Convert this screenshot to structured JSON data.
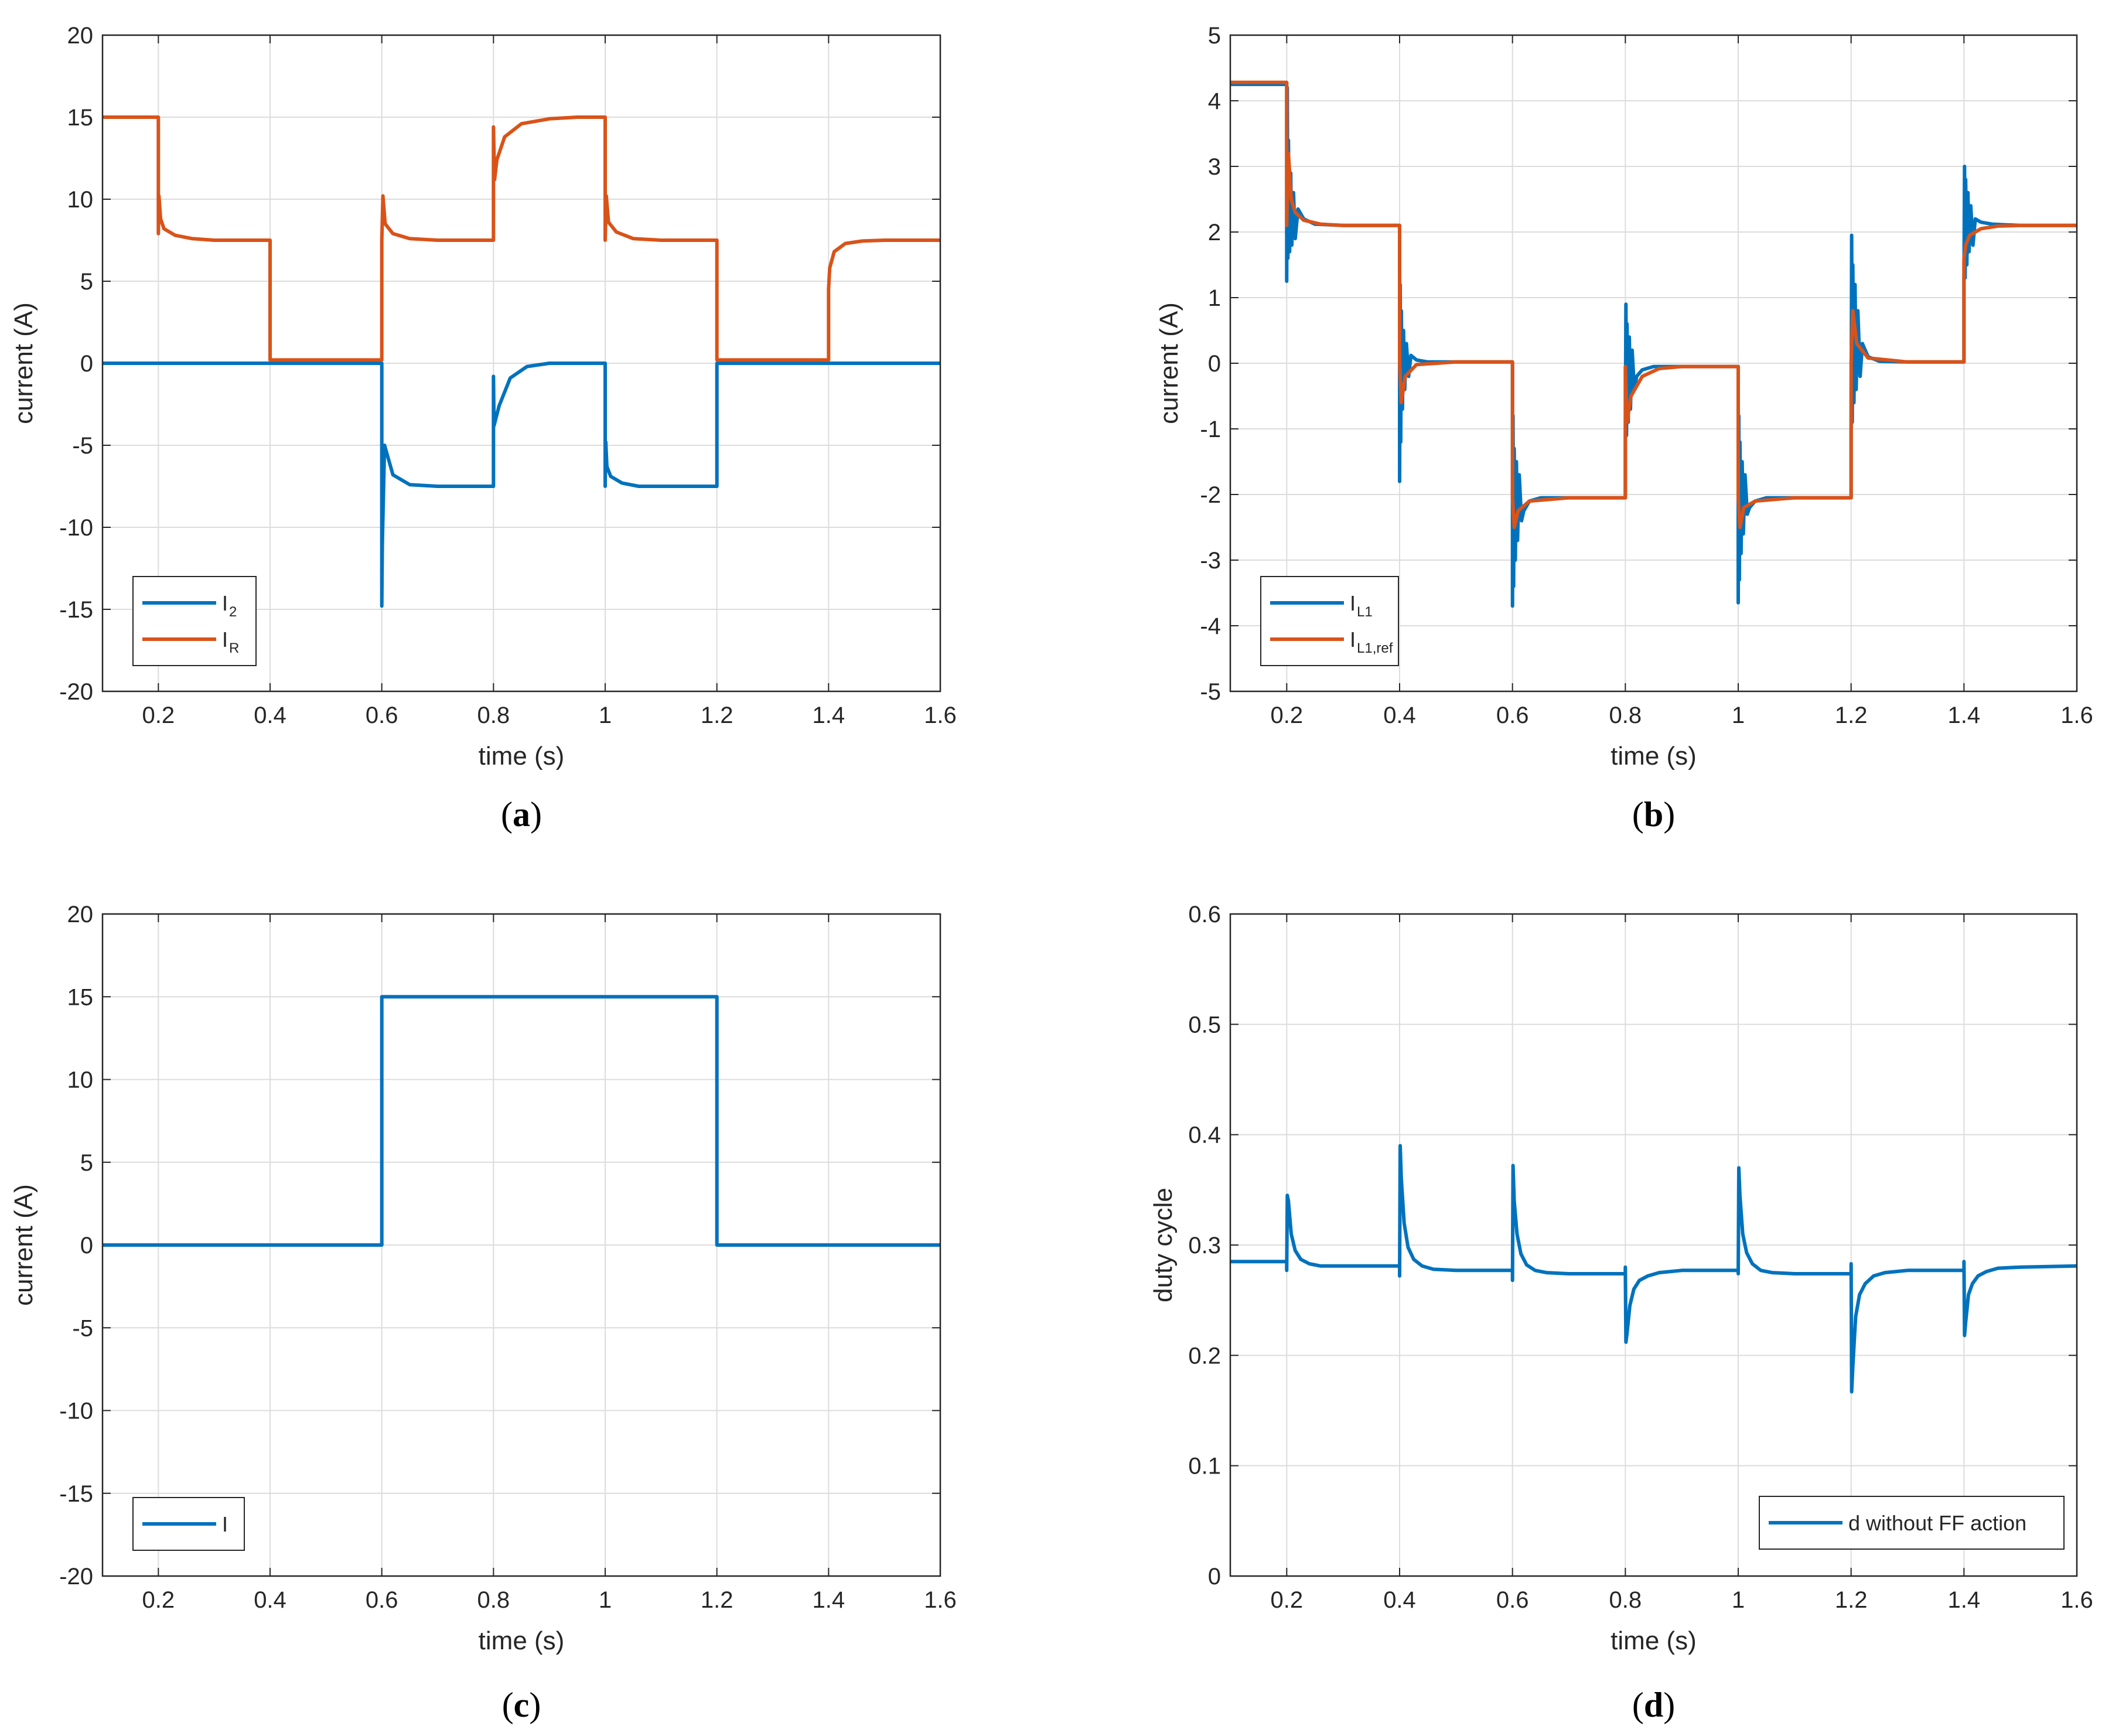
{
  "chart_data": [
    {
      "panel": "a",
      "caption": {
        "open": "(",
        "letter": "a",
        "close": ")"
      },
      "type": "line",
      "xlabel": "time (s)",
      "ylabel": "current (A)",
      "xlim": [
        0.1,
        1.6
      ],
      "ylim": [
        -20,
        20
      ],
      "xticks": [
        0.2,
        0.4,
        0.6,
        0.8,
        1,
        1.2,
        1.4,
        1.6
      ],
      "yticks": [
        -20,
        -15,
        -10,
        -5,
        0,
        5,
        10,
        15,
        20
      ],
      "grid": true,
      "legend_position": "bottom-left",
      "series": [
        {
          "name": "I",
          "subscript": "2",
          "color": "#0072BD",
          "x": [
            0.1,
            0.6,
            0.6,
            0.601,
            0.605,
            0.62,
            0.65,
            0.7,
            0.8,
            0.8,
            0.801,
            0.81,
            0.83,
            0.86,
            0.9,
            1.0,
            1.0,
            1.001,
            1.003,
            1.01,
            1.03,
            1.06,
            1.1,
            1.2,
            1.2,
            1.6
          ],
          "y": [
            0,
            0,
            -14.8,
            -11,
            -5,
            -6.8,
            -7.4,
            -7.5,
            -7.5,
            -0.8,
            -3.8,
            -2.6,
            -0.9,
            -0.2,
            0,
            0,
            -7.5,
            -4.8,
            -6.3,
            -6.9,
            -7.3,
            -7.5,
            -7.5,
            -7.5,
            0,
            0
          ]
        },
        {
          "name": "I",
          "subscript": "R",
          "color": "#D95319",
          "x": [
            0.1,
            0.2,
            0.2,
            0.201,
            0.204,
            0.21,
            0.23,
            0.26,
            0.3,
            0.4,
            0.4,
            0.6,
            0.6,
            0.602,
            0.606,
            0.62,
            0.65,
            0.7,
            0.8,
            0.8,
            0.802,
            0.806,
            0.82,
            0.85,
            0.9,
            0.95,
            1.0,
            1.0,
            1.002,
            1.006,
            1.02,
            1.05,
            1.1,
            1.2,
            1.2,
            1.4,
            1.4,
            1.402,
            1.41,
            1.43,
            1.46,
            1.5,
            1.6
          ],
          "y": [
            15,
            15,
            7.9,
            10.2,
            8.8,
            8.2,
            7.8,
            7.6,
            7.5,
            7.5,
            0.2,
            0.2,
            7.5,
            10.2,
            8.5,
            7.9,
            7.6,
            7.5,
            7.5,
            14.4,
            11.2,
            12.4,
            13.8,
            14.6,
            14.9,
            15,
            15,
            7.5,
            10.2,
            8.6,
            8.0,
            7.6,
            7.5,
            7.5,
            0.2,
            0.2,
            4.5,
            5.8,
            6.8,
            7.3,
            7.45,
            7.5,
            7.5
          ]
        }
      ]
    },
    {
      "panel": "b",
      "caption": {
        "open": "(",
        "letter": "b",
        "close": ")"
      },
      "type": "line",
      "xlabel": "time (s)",
      "ylabel": "current (A)",
      "xlim": [
        0.1,
        1.6
      ],
      "ylim": [
        -5,
        5
      ],
      "xticks": [
        0.2,
        0.4,
        0.6,
        0.8,
        1,
        1.2,
        1.4,
        1.6
      ],
      "yticks": [
        -5,
        -4,
        -3,
        -2,
        -1,
        0,
        1,
        2,
        3,
        4,
        5
      ],
      "grid": true,
      "legend_position": "bottom-left",
      "series": [
        {
          "name": "I",
          "subscript": "L1",
          "color": "#0072BD",
          "x": [
            0.1,
            0.2,
            0.2,
            0.201,
            0.202,
            0.203,
            0.205,
            0.207,
            0.209,
            0.212,
            0.215,
            0.22,
            0.23,
            0.25,
            0.3,
            0.4,
            0.4,
            0.401,
            0.402,
            0.403,
            0.405,
            0.407,
            0.409,
            0.412,
            0.416,
            0.42,
            0.43,
            0.45,
            0.5,
            0.6,
            0.6,
            0.601,
            0.602,
            0.603,
            0.605,
            0.607,
            0.609,
            0.612,
            0.616,
            0.62,
            0.63,
            0.65,
            0.7,
            0.8,
            0.8,
            0.801,
            0.802,
            0.803,
            0.805,
            0.807,
            0.809,
            0.812,
            0.816,
            0.82,
            0.83,
            0.85,
            0.9,
            1.0,
            1.0,
            1.001,
            1.002,
            1.003,
            1.005,
            1.007,
            1.009,
            1.012,
            1.016,
            1.02,
            1.03,
            1.05,
            1.1,
            1.2,
            1.2,
            1.201,
            1.202,
            1.203,
            1.205,
            1.207,
            1.209,
            1.212,
            1.216,
            1.22,
            1.23,
            1.25,
            1.3,
            1.4,
            1.4,
            1.401,
            1.402,
            1.403,
            1.405,
            1.407,
            1.409,
            1.412,
            1.416,
            1.42,
            1.43,
            1.45,
            1.5,
            1.6
          ],
          "y": [
            4.25,
            4.25,
            1.25,
            4.2,
            1.6,
            3.4,
            1.7,
            2.9,
            1.8,
            2.6,
            1.9,
            2.35,
            2.2,
            2.12,
            2.1,
            2.1,
            -1.8,
            1.2,
            -1.2,
            0.8,
            -0.7,
            0.5,
            -0.4,
            0.3,
            -0.2,
            0.12,
            0.05,
            0.02,
            0.02,
            0.02,
            -3.7,
            -0.8,
            -3.4,
            -1.3,
            -3.0,
            -1.5,
            -2.7,
            -1.7,
            -2.4,
            -2.25,
            -2.1,
            -2.05,
            -2.05,
            -2.05,
            -1.2,
            0.9,
            -1.1,
            0.6,
            -0.9,
            0.4,
            -0.7,
            0.2,
            -0.4,
            -0.2,
            -0.1,
            -0.05,
            -0.05,
            -0.05,
            -3.65,
            -0.8,
            -3.3,
            -1.2,
            -2.9,
            -1.5,
            -2.6,
            -1.7,
            -2.3,
            -2.2,
            -2.1,
            -2.05,
            -2.05,
            -2.05,
            -1.2,
            1.95,
            -0.9,
            1.5,
            -0.6,
            1.2,
            -0.4,
            0.8,
            -0.2,
            0.3,
            0.1,
            0.03,
            0.02,
            0.02,
            1.2,
            3.0,
            1.3,
            2.8,
            1.5,
            2.6,
            1.7,
            2.4,
            1.8,
            2.2,
            2.15,
            2.12,
            2.1,
            2.1
          ]
        },
        {
          "name": "I",
          "subscript": "L1,ref",
          "color": "#D95319",
          "x": [
            0.1,
            0.2,
            0.2,
            0.203,
            0.208,
            0.215,
            0.23,
            0.26,
            0.3,
            0.4,
            0.4,
            0.403,
            0.41,
            0.43,
            0.5,
            0.6,
            0.6,
            0.603,
            0.61,
            0.63,
            0.7,
            0.8,
            0.8,
            0.803,
            0.81,
            0.83,
            0.86,
            0.9,
            1.0,
            1.0,
            1.003,
            1.01,
            1.03,
            1.1,
            1.2,
            1.2,
            1.203,
            1.21,
            1.23,
            1.3,
            1.4,
            1.4,
            1.403,
            1.41,
            1.43,
            1.46,
            1.5,
            1.6
          ],
          "y": [
            4.28,
            4.28,
            2.1,
            3.2,
            2.5,
            2.3,
            2.18,
            2.12,
            2.1,
            2.1,
            0.02,
            -0.6,
            -0.2,
            -0.02,
            0.02,
            0.02,
            -2.05,
            -2.5,
            -2.25,
            -2.1,
            -2.05,
            -2.05,
            -0.05,
            -0.9,
            -0.5,
            -0.2,
            -0.08,
            -0.05,
            -0.05,
            -2.05,
            -2.5,
            -2.2,
            -2.1,
            -2.05,
            -2.05,
            0.02,
            0.8,
            0.3,
            0.08,
            0.02,
            0.02,
            1.6,
            1.8,
            1.95,
            2.05,
            2.09,
            2.1,
            2.1
          ]
        }
      ]
    },
    {
      "panel": "c",
      "caption": {
        "open": "(",
        "letter": "c",
        "close": ")"
      },
      "type": "line",
      "xlabel": "time (s)",
      "ylabel": "current (A)",
      "xlim": [
        0.1,
        1.6
      ],
      "ylim": [
        -20,
        20
      ],
      "xticks": [
        0.2,
        0.4,
        0.6,
        0.8,
        1,
        1.2,
        1.4,
        1.6
      ],
      "yticks": [
        -20,
        -15,
        -10,
        -5,
        0,
        5,
        10,
        15,
        20
      ],
      "grid": true,
      "legend_position": "bottom-left",
      "series": [
        {
          "name": "I",
          "subscript": "",
          "color": "#0072BD",
          "x": [
            0.1,
            0.6,
            0.6,
            1.2,
            1.2,
            1.6
          ],
          "y": [
            0,
            0,
            15,
            15,
            0,
            0
          ]
        }
      ]
    },
    {
      "panel": "d",
      "caption": {
        "open": "(",
        "letter": "d",
        "close": ")"
      },
      "type": "line",
      "xlabel": "time (s)",
      "ylabel": "duty cycle",
      "xlim": [
        0.1,
        1.6
      ],
      "ylim": [
        0,
        0.6
      ],
      "xticks": [
        0.2,
        0.4,
        0.6,
        0.8,
        1,
        1.2,
        1.4,
        1.6
      ],
      "yticks": [
        0,
        0.1,
        0.2,
        0.3,
        0.4,
        0.5,
        0.6
      ],
      "grid": true,
      "legend_position": "bottom-right",
      "series": [
        {
          "name": "d without FF action",
          "subscript": "",
          "color": "#0072BD",
          "x": [
            0.1,
            0.2,
            0.2,
            0.201,
            0.203,
            0.208,
            0.215,
            0.225,
            0.24,
            0.26,
            0.3,
            0.4,
            0.4,
            0.401,
            0.403,
            0.408,
            0.415,
            0.425,
            0.44,
            0.46,
            0.5,
            0.6,
            0.6,
            0.601,
            0.603,
            0.608,
            0.615,
            0.625,
            0.64,
            0.66,
            0.7,
            0.8,
            0.8,
            0.801,
            0.803,
            0.808,
            0.815,
            0.825,
            0.84,
            0.86,
            0.9,
            1.0,
            1.0,
            1.001,
            1.003,
            1.008,
            1.015,
            1.025,
            1.04,
            1.06,
            1.1,
            1.2,
            1.2,
            1.201,
            1.203,
            1.208,
            1.215,
            1.225,
            1.24,
            1.26,
            1.3,
            1.4,
            1.4,
            1.401,
            1.403,
            1.408,
            1.415,
            1.425,
            1.44,
            1.46,
            1.5,
            1.6
          ],
          "y": [
            0.285,
            0.285,
            0.277,
            0.345,
            0.34,
            0.31,
            0.295,
            0.287,
            0.283,
            0.281,
            0.281,
            0.281,
            0.272,
            0.39,
            0.36,
            0.32,
            0.298,
            0.287,
            0.281,
            0.278,
            0.277,
            0.277,
            0.268,
            0.372,
            0.34,
            0.31,
            0.292,
            0.282,
            0.277,
            0.275,
            0.274,
            0.274,
            0.28,
            0.212,
            0.22,
            0.245,
            0.26,
            0.268,
            0.272,
            0.275,
            0.277,
            0.277,
            0.274,
            0.37,
            0.345,
            0.31,
            0.293,
            0.283,
            0.277,
            0.275,
            0.274,
            0.274,
            0.283,
            0.167,
            0.19,
            0.235,
            0.255,
            0.265,
            0.272,
            0.275,
            0.277,
            0.277,
            0.285,
            0.218,
            0.23,
            0.255,
            0.265,
            0.272,
            0.276,
            0.279,
            0.28,
            0.281
          ]
        }
      ]
    }
  ]
}
